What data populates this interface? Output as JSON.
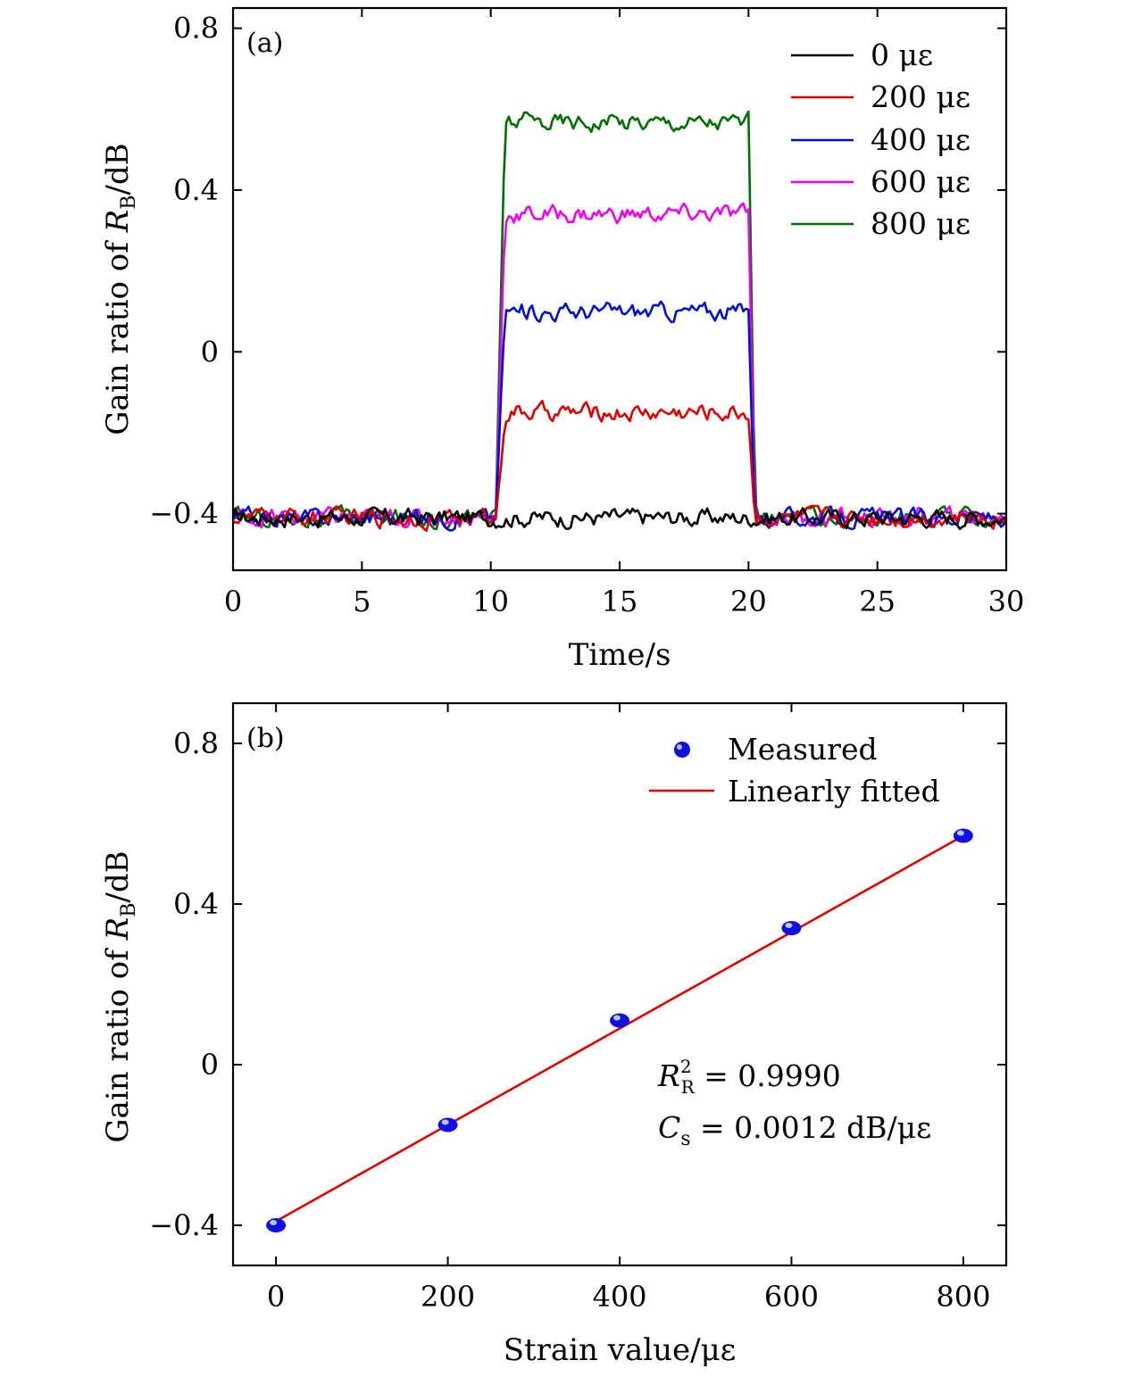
{
  "chart_data": [
    {
      "type": "line",
      "panel_label": "(a)",
      "xlabel": "Time/s",
      "ylabel_prefix": "Gain ratio of ",
      "ylabel_var": "R",
      "ylabel_sub": "B",
      "ylabel_suffix": "/dB",
      "xlim": [
        0,
        30
      ],
      "ylim": [
        -0.54,
        0.85
      ],
      "xticks": [
        0,
        5,
        10,
        15,
        20,
        25,
        30
      ],
      "xtick_labels": [
        "0",
        "5",
        "10",
        "15",
        "20",
        "25",
        "30"
      ],
      "yticks": [
        -0.4,
        0,
        0.4,
        0.8
      ],
      "ytick_labels": [
        "−0.4",
        "0",
        "0.4",
        "0.8"
      ],
      "grid": false,
      "legend_position": "top-right",
      "step": {
        "t_start": 10.2,
        "t_end": 20.0,
        "baseline": -0.41,
        "noise": 0.02
      },
      "series": [
        {
          "name": "0 με",
          "color": "#000000",
          "plateau": -0.41
        },
        {
          "name": "200 με",
          "color": "#e00000",
          "plateau": -0.15
        },
        {
          "name": "400 με",
          "color": "#0010d0",
          "plateau": 0.1
        },
        {
          "name": "600 με",
          "color": "#f000f0",
          "plateau": 0.34
        },
        {
          "name": "800 με",
          "color": "#007000",
          "plateau": 0.57
        }
      ]
    },
    {
      "type": "scatter",
      "panel_label": "(b)",
      "xlabel": "Strain value/με",
      "ylabel_prefix": "Gain ratio of ",
      "ylabel_var": "R",
      "ylabel_sub": "B",
      "ylabel_suffix": "/dB",
      "xlim": [
        -50,
        850
      ],
      "ylim": [
        -0.5,
        0.9
      ],
      "xticks": [
        0,
        200,
        400,
        600,
        800
      ],
      "xtick_labels": [
        "0",
        "200",
        "400",
        "600",
        "800"
      ],
      "yticks": [
        -0.4,
        0,
        0.4,
        0.8
      ],
      "ytick_labels": [
        "−0.4",
        "0",
        "0.4",
        "0.8"
      ],
      "grid": false,
      "legend_position": "top-right",
      "series": [
        {
          "name": "Measured",
          "color": "#1010e0",
          "x": [
            0,
            200,
            400,
            600,
            800
          ],
          "y": [
            -0.4,
            -0.15,
            0.11,
            0.34,
            0.57
          ]
        },
        {
          "name": "Linearly fitted",
          "color": "#e00000",
          "fit": {
            "slope": 0.0012,
            "intercept": -0.39,
            "x": [
              0,
              800
            ]
          }
        }
      ],
      "annotations": {
        "r2_var": "R",
        "r2_sup": "2",
        "r2_sub": "R",
        "r2_value": " = 0.9990",
        "cs_var": "C",
        "cs_sub": "s",
        "cs_value": " = 0.0012 dB/με"
      }
    }
  ]
}
